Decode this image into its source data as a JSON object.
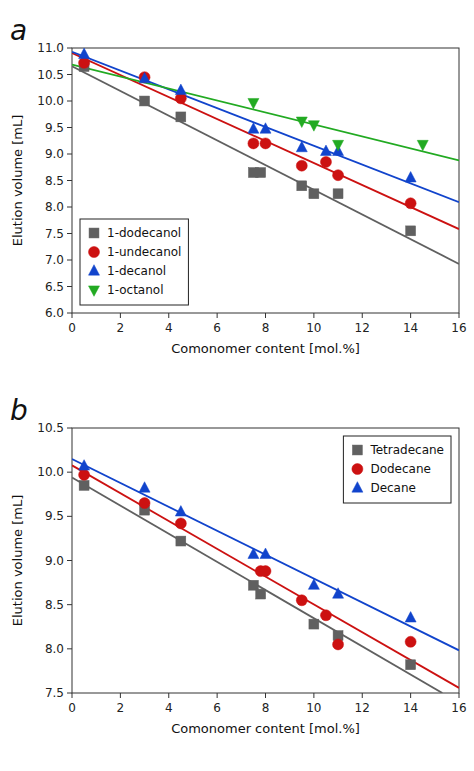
{
  "chart_data": [
    {
      "type": "scatter",
      "title": "a",
      "x_label": "Comonomer content [mol.%]",
      "y_label": "Elution volume [mL]",
      "xlim": [
        0,
        16
      ],
      "ylim": [
        6.0,
        11.0
      ],
      "xticks": [
        0,
        2,
        4,
        6,
        8,
        10,
        12,
        14,
        16
      ],
      "yticks": [
        {
          "value": 6,
          "label": "6.0"
        },
        6.5,
        {
          "value": 7,
          "label": "7.0"
        },
        7.5,
        {
          "value": 8,
          "label": "8.0"
        },
        8.5,
        {
          "value": 9,
          "label": "9.0"
        },
        9.5,
        {
          "value": 10,
          "label": "10.0"
        },
        10.5,
        {
          "value": 11,
          "label": "11.0"
        }
      ],
      "legend": "lower left",
      "series": [
        {
          "name": "1-dodecanol",
          "color": "#606060",
          "marker": "square",
          "x": [
            0.5,
            3.0,
            4.5,
            7.5,
            7.8,
            9.5,
            10.0,
            11.0,
            14.0
          ],
          "values": [
            10.65,
            10.0,
            9.7,
            8.65,
            8.65,
            8.4,
            8.25,
            8.25,
            7.55
          ],
          "trend_x": [
            0,
            16
          ],
          "trend_y": [
            10.6559,
            6.9265
          ]
        },
        {
          "name": "1-undecanol",
          "color": "#cc1111",
          "marker": "circle",
          "x": [
            0.5,
            3.0,
            4.5,
            7.5,
            8.0,
            9.5,
            10.5,
            11.0,
            14.0
          ],
          "values": [
            10.72,
            10.45,
            10.05,
            9.2,
            9.2,
            8.78,
            8.85,
            8.6,
            8.07
          ],
          "trend_x": [
            0,
            16
          ],
          "trend_y": [
            10.9039,
            7.5836
          ]
        },
        {
          "name": "1-decanol",
          "color": "#1144cc",
          "marker": "triangle-up",
          "x": [
            0.5,
            3.0,
            4.5,
            7.5,
            8.0,
            9.5,
            10.5,
            11.0,
            14.0
          ],
          "values": [
            10.88,
            10.42,
            10.2,
            9.47,
            9.47,
            9.12,
            9.05,
            9.05,
            8.55
          ],
          "trend_x": [
            0,
            16
          ],
          "trend_y": [
            10.9277,
            8.0922
          ]
        },
        {
          "name": "1-octanol",
          "color": "#22aa22",
          "marker": "triangle-down",
          "x": [
            7.5,
            9.5,
            10.0,
            11.0,
            14.5
          ],
          "values": [
            9.97,
            9.62,
            9.55,
            9.18,
            9.18
          ],
          "trend_x": [
            0,
            16
          ],
          "trend_y": [
            10.6867,
            8.8784
          ]
        }
      ]
    },
    {
      "type": "scatter",
      "title": "b",
      "x_label": "Comonomer content [mol.%]",
      "y_label": "Elution volume [mL]",
      "xlim": [
        0,
        16
      ],
      "ylim": [
        7.5,
        10.5
      ],
      "xticks": [
        0,
        2,
        4,
        6,
        8,
        10,
        12,
        14,
        16
      ],
      "yticks": [
        7.5,
        {
          "value": 8,
          "label": "8.0"
        },
        8.5,
        {
          "value": 9,
          "label": "9.0"
        },
        9.5,
        {
          "value": 10,
          "label": "10.0"
        },
        10.5
      ],
      "legend": "upper right",
      "series": [
        {
          "name": "Tetradecane",
          "color": "#606060",
          "marker": "square",
          "x": [
            0.5,
            3.0,
            4.5,
            7.5,
            7.8,
            10.0,
            11.0,
            14.0
          ],
          "values": [
            9.85,
            9.57,
            9.22,
            8.72,
            8.62,
            8.28,
            8.15,
            7.82
          ],
          "trend_x": [
            0,
            15.311
          ],
          "trend_y": [
            9.9402,
            7.5
          ]
        },
        {
          "name": "Dodecane",
          "color": "#cc1111",
          "marker": "circle",
          "x": [
            0.5,
            3.0,
            4.5,
            7.8,
            8.0,
            9.5,
            10.5,
            11.0,
            14.0
          ],
          "values": [
            9.97,
            9.65,
            9.42,
            8.88,
            8.88,
            8.55,
            8.38,
            8.05,
            8.08
          ],
          "trend_x": [
            0,
            16
          ],
          "trend_y": [
            10.0769,
            7.5578
          ]
        },
        {
          "name": "Decane",
          "color": "#1144cc",
          "marker": "triangle-up",
          "x": [
            0.5,
            3.0,
            4.5,
            7.5,
            8.0,
            10.0,
            11.0,
            14.0
          ],
          "values": [
            10.07,
            9.82,
            9.55,
            9.07,
            9.07,
            8.72,
            8.62,
            8.35
          ],
          "trend_x": [
            0,
            16
          ],
          "trend_y": [
            10.1486,
            7.9827
          ]
        }
      ]
    }
  ]
}
